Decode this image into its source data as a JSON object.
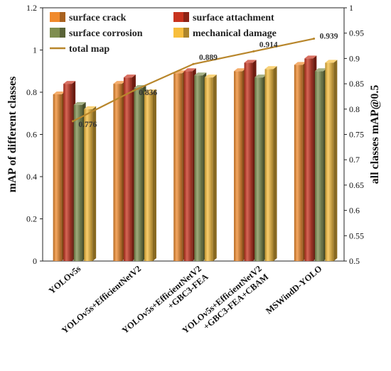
{
  "chart_data": {
    "type": "bar",
    "categories": [
      [
        "YOLOv5s"
      ],
      [
        "YOLOv5s+EfficientNetV2"
      ],
      [
        "YOLOv5s+EfficientNetV2",
        "+GBC3-FEA"
      ],
      [
        "YOLOv5s+EfficientNetV2",
        "+GBC3-FEA+CBAM"
      ],
      [
        "MSWindD-YOLO"
      ]
    ],
    "series": [
      {
        "name": "surface crack",
        "color": "#F08A2C",
        "values": [
          0.79,
          0.84,
          0.89,
          0.9,
          0.93
        ]
      },
      {
        "name": "surface attachment",
        "color": "#C8331E",
        "values": [
          0.84,
          0.87,
          0.9,
          0.94,
          0.96
        ]
      },
      {
        "name": "surface corrosion",
        "color": "#7F8E4F",
        "values": [
          0.74,
          0.82,
          0.88,
          0.87,
          0.9
        ]
      },
      {
        "name": "mechanical damage",
        "color": "#F7BE3C",
        "values": [
          0.72,
          0.8,
          0.87,
          0.91,
          0.94
        ]
      }
    ],
    "line": {
      "name": "total map",
      "color": "#B8862B",
      "values": [
        0.776,
        0.836,
        0.889,
        0.914,
        0.939
      ],
      "labels": [
        "0.776",
        "0.836",
        "0.889",
        "0.914",
        "0.939"
      ]
    },
    "ylabel": "mAP of different classes",
    "y2label": "all classes mAP@0.5",
    "ylim": [
      0,
      1.2
    ],
    "y2lim": [
      0.5,
      1.0
    ],
    "yticks": [
      "0",
      "0.2",
      "0.4",
      "0.6",
      "0.8",
      "1",
      "1.2"
    ],
    "y2ticks": [
      "0.5",
      "0.55",
      "0.6",
      "0.65",
      "0.7",
      "0.75",
      "0.8",
      "0.85",
      "0.9",
      "0.95",
      "1"
    ],
    "legend": "top-left"
  }
}
